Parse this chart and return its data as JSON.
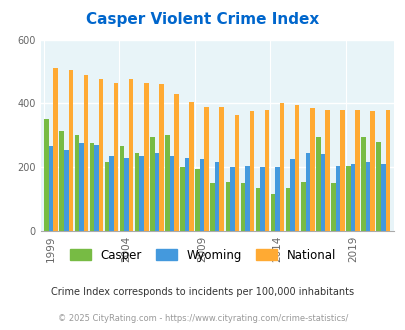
{
  "title": "Casper Violent Crime Index",
  "title_color": "#0066cc",
  "subtitle": "Crime Index corresponds to incidents per 100,000 inhabitants",
  "copyright": "© 2025 CityRating.com - https://www.cityrating.com/crime-statistics/",
  "years": [
    1999,
    2000,
    2001,
    2002,
    2003,
    2004,
    2005,
    2006,
    2007,
    2008,
    2009,
    2010,
    2011,
    2012,
    2013,
    2014,
    2015,
    2016,
    2017,
    2018,
    2019,
    2020,
    2021
  ],
  "casper": [
    350,
    315,
    300,
    275,
    215,
    265,
    245,
    295,
    300,
    200,
    195,
    150,
    155,
    150,
    135,
    115,
    135,
    155,
    295,
    150,
    205,
    295,
    280
  ],
  "wyoming": [
    265,
    255,
    275,
    270,
    235,
    230,
    235,
    245,
    235,
    230,
    225,
    215,
    200,
    205,
    200,
    200,
    225,
    245,
    240,
    205,
    210,
    215,
    210
  ],
  "national": [
    510,
    505,
    490,
    475,
    465,
    475,
    465,
    460,
    430,
    405,
    390,
    390,
    365,
    375,
    380,
    400,
    395,
    385,
    380,
    380,
    380,
    375,
    380
  ],
  "casper_color": "#77bb44",
  "wyoming_color": "#4499dd",
  "national_color": "#ffaa33",
  "background_color": "#e8f4f8",
  "ylim": [
    0,
    600
  ],
  "yticks": [
    0,
    200,
    400,
    600
  ],
  "tick_years": [
    1999,
    2004,
    2009,
    2014,
    2019
  ],
  "legend_labels": [
    "Casper",
    "Wyoming",
    "National"
  ]
}
